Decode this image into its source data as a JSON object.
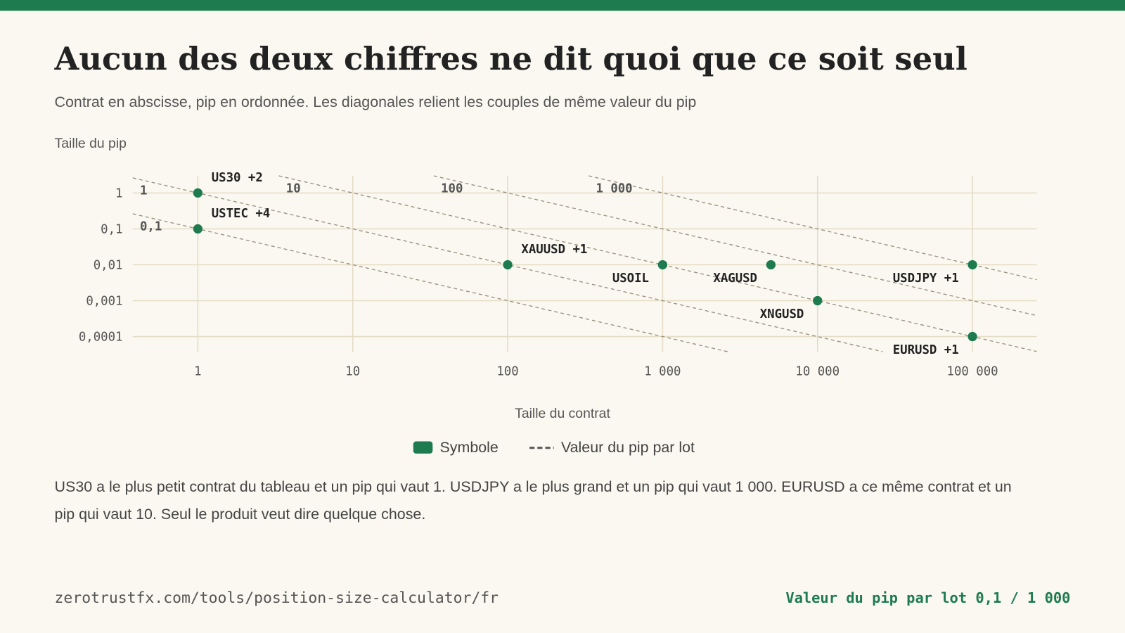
{
  "header": {
    "title": "Aucun des deux chiffres ne dit quoi que ce soit seul",
    "subtitle": "Contrat en abscisse, pip en ordonnée. Les diagonales relient les couples de même valeur du pip"
  },
  "chart_data": {
    "type": "scatter",
    "x_scale": "log",
    "y_scale": "log",
    "grid": true,
    "y_label": "Taille du pip",
    "x_label": "Taille du contrat",
    "xlim": [
      0.38,
      260000
    ],
    "ylim": [
      3.8e-05,
      3
    ],
    "xticks": [
      1,
      10,
      100,
      {
        "value": 1000,
        "label": "1 000"
      },
      {
        "value": 10000,
        "label": "10 000"
      },
      {
        "value": 100000,
        "label": "100 000"
      }
    ],
    "yticks": [
      1,
      {
        "value": 0.1,
        "label": "0,1"
      },
      {
        "value": 0.01,
        "label": "0,01"
      },
      {
        "value": 0.001,
        "label": "0,001"
      },
      {
        "value": 0.0001,
        "label": "0,0001"
      }
    ],
    "series": [
      {
        "name": "Symbole",
        "color": "#1e7b50",
        "labels": [
          "US30 +2",
          "USTEC +4",
          "XAUUSD +1",
          "USOIL",
          "XAGUSD",
          "XNGUSD",
          "USDJPY +1",
          "EURUSD +1"
        ],
        "x": [
          1,
          1,
          100,
          1000,
          5000,
          10000,
          100000,
          100000
        ],
        "values": [
          1,
          0.1,
          0.01,
          0.01,
          0.01,
          0.001,
          0.01,
          0.0001
        ]
      }
    ],
    "reference_lines": {
      "name": "Valeur du pip par lot",
      "color": "#999080",
      "values": [
        0.1,
        1,
        10,
        100,
        1000
      ],
      "value_labels": [
        "0,1",
        "1",
        "10",
        "100",
        "1 000"
      ]
    }
  },
  "body": {
    "paragraph": "US30 a le plus petit contrat du tableau et un pip qui vaut 1. USDJPY a le plus grand et un pip qui vaut 1 000. EURUSD a ce même contrat et un pip qui vaut 10. Seul le produit veut dire quelque chose."
  },
  "footer": {
    "url": "zerotrustfx.com/tools/position-size-calculator/fr",
    "note": "Valeur du pip par lot 0,1 / 1 000"
  }
}
